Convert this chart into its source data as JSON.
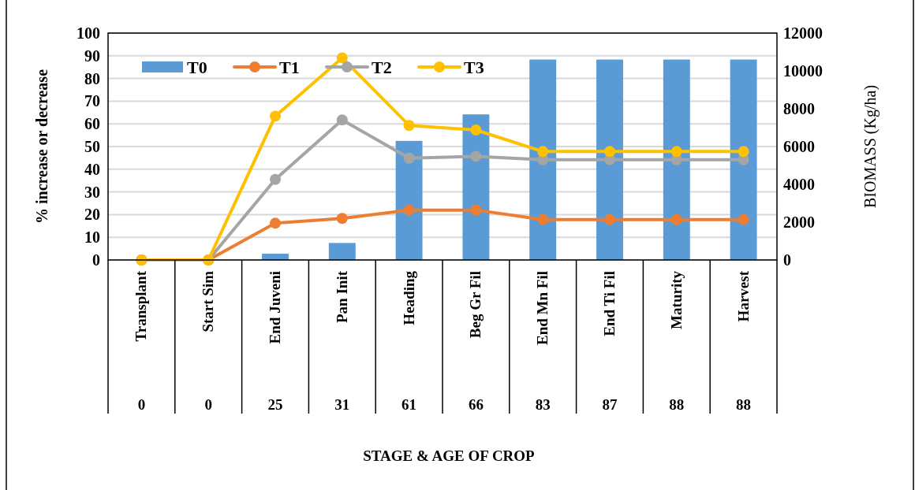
{
  "chart_data": {
    "type": "bar",
    "ylabel": "% increase or decrease",
    "y2label": "BIOMASS (Kg/ha)",
    "categories": [
      "Transplant",
      "Start Sim",
      "End Juveni",
      "Pan Init",
      "Heading",
      "Beg Gr Fil",
      "End Mn Fil",
      "End Ti Fil",
      "Maturity",
      "Harvest"
    ],
    "series": [
      {
        "name": "T0",
        "axis": "y2",
        "color": "#5b9bd5",
        "values": [
          0,
          0,
          330,
          900,
          6300,
          7700,
          10600,
          10600,
          10600,
          10600
        ]
      },
      {
        "name": "T1",
        "type": "line",
        "color": "#ed7d31",
        "values": [
          0,
          0,
          16.2,
          18.3,
          22.0,
          22.0,
          17.8,
          17.8,
          17.8,
          17.8
        ]
      },
      {
        "name": "T2",
        "type": "line",
        "color": "#a5a5a5",
        "values": [
          0,
          0,
          35.5,
          61.7,
          44.9,
          45.7,
          44.2,
          44.2,
          44.2,
          44.2
        ]
      },
      {
        "name": "T3",
        "type": "line",
        "color": "#ffc000",
        "values": [
          0,
          0,
          63.4,
          89.1,
          59.3,
          57.3,
          47.8,
          47.8,
          47.8,
          47.8
        ]
      }
    ],
    "ylim": [
      0,
      100
    ],
    "yticks": [
      0,
      10,
      20,
      30,
      40,
      50,
      60,
      70,
      80,
      90,
      100
    ],
    "y2lim": [
      0,
      12000
    ],
    "y2ticks": [
      0,
      2000,
      4000,
      6000,
      8000,
      10000,
      12000
    ],
    "grid": "y",
    "legend": "top left",
    "marker": "circle",
    "line_style": "solid",
    "annotations": [
      "0",
      "0",
      "25",
      "31",
      "61",
      "66",
      "83",
      "87",
      "88",
      "88",
      "STAGE & AGE OF CROP"
    ]
  }
}
